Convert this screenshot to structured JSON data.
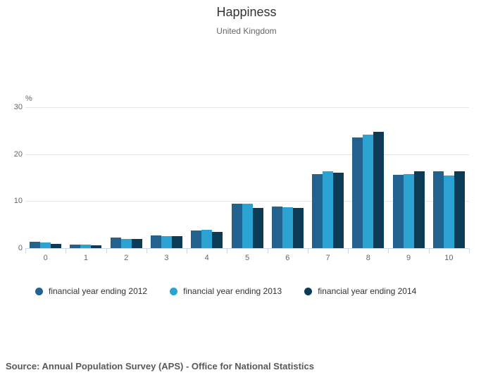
{
  "chart_data": {
    "type": "bar",
    "title": "Happiness",
    "subtitle": "United Kingdom",
    "ylabel": "%",
    "ylim": [
      0,
      30
    ],
    "yticks": [
      0,
      10,
      20,
      30
    ],
    "grid": true,
    "legend_position": "bottom",
    "categories": [
      "0",
      "1",
      "2",
      "3",
      "4",
      "5",
      "6",
      "7",
      "8",
      "9",
      "10"
    ],
    "series": [
      {
        "name": "financial year ending 2012",
        "color": "#23618f",
        "values": [
          1.3,
          0.8,
          2.2,
          2.7,
          3.7,
          9.4,
          8.8,
          15.8,
          23.5,
          15.6,
          16.3
        ]
      },
      {
        "name": "financial year ending 2013",
        "color": "#2aa3d3",
        "values": [
          1.2,
          0.8,
          1.9,
          2.5,
          3.9,
          9.4,
          8.7,
          16.3,
          24.1,
          15.7,
          15.4
        ]
      },
      {
        "name": "financial year ending 2014",
        "color": "#0c3c55",
        "values": [
          0.9,
          0.6,
          2.0,
          2.5,
          3.4,
          8.5,
          8.6,
          16.0,
          24.7,
          16.4,
          16.4
        ]
      }
    ],
    "colors": {
      "gridline": "#e6e6e6",
      "axis_line": "#ccd6eb",
      "tick_label": "#666666"
    }
  },
  "source": "Source: Annual Population Survey (APS) - Office for National Statistics"
}
